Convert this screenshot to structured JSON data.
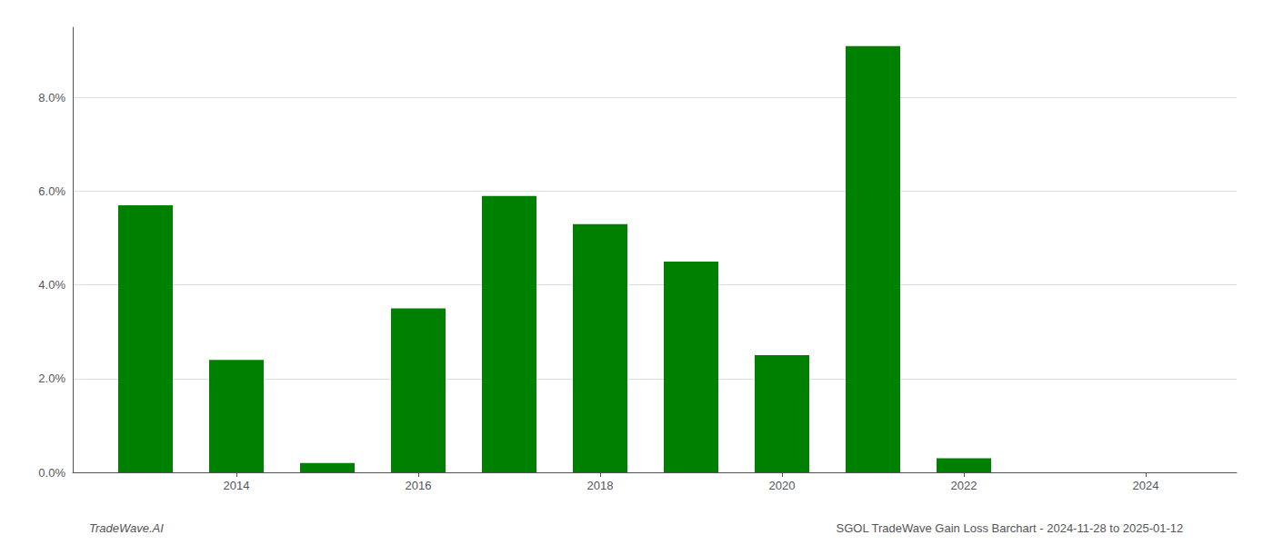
{
  "chart_data": {
    "type": "bar",
    "x": [
      2013,
      2014,
      2015,
      2016,
      2017,
      2018,
      2019,
      2020,
      2021,
      2022,
      2023
    ],
    "values": [
      0.057,
      0.024,
      0.002,
      0.035,
      0.059,
      0.053,
      0.045,
      0.025,
      0.091,
      0.003,
      0.0
    ],
    "color": "#008000",
    "xlim": [
      2012.2,
      2025.0
    ],
    "xticks": [
      2014,
      2016,
      2018,
      2020,
      2022,
      2024
    ],
    "ylim": [
      0,
      0.095
    ],
    "yticks": [
      {
        "value": 0.0,
        "label": "0.0%"
      },
      {
        "value": 0.02,
        "label": "2.0%"
      },
      {
        "value": 0.04,
        "label": "4.0%"
      },
      {
        "value": 0.06,
        "label": "6.0%"
      },
      {
        "value": 0.08,
        "label": "8.0%"
      }
    ],
    "grid": true,
    "annotations": [
      "TradeWave.AI",
      "SGOL TradeWave Gain Loss Barchart - 2024-11-28 to 2025-01-12"
    ]
  }
}
